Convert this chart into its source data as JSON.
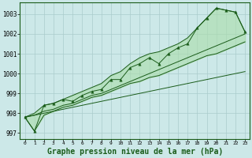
{
  "xlabel": "Graphe pression niveau de la mer (hPa)",
  "bg_color": "#cce8e8",
  "grid_color": "#aacccc",
  "line_color": "#1a5c1a",
  "fill_color": "#aaddaa",
  "ylim": [
    996.7,
    1003.6
  ],
  "xlim": [
    -0.5,
    23.5
  ],
  "yticks": [
    997,
    998,
    999,
    1000,
    1001,
    1002,
    1003
  ],
  "xticks": [
    0,
    1,
    2,
    3,
    4,
    5,
    6,
    7,
    8,
    9,
    10,
    11,
    12,
    13,
    14,
    15,
    16,
    17,
    18,
    19,
    20,
    21,
    22,
    23
  ],
  "x": [
    0,
    1,
    2,
    3,
    4,
    5,
    6,
    7,
    8,
    9,
    10,
    11,
    12,
    13,
    14,
    15,
    16,
    17,
    18,
    19,
    20,
    21,
    22,
    23
  ],
  "y_main": [
    997.8,
    997.1,
    998.4,
    998.5,
    998.7,
    998.6,
    998.9,
    999.1,
    999.2,
    999.7,
    999.7,
    1000.3,
    1000.5,
    1000.8,
    1000.5,
    1001.0,
    1001.3,
    1001.5,
    1002.3,
    1002.8,
    1003.3,
    1003.2,
    1003.1,
    1002.1
  ],
  "y_upper": [
    997.8,
    998.0,
    998.4,
    998.5,
    998.7,
    998.9,
    999.1,
    999.3,
    999.5,
    999.9,
    1000.1,
    1000.5,
    1000.8,
    1001.0,
    1001.1,
    1001.3,
    1001.5,
    1001.8,
    1002.3,
    1002.8,
    1003.3,
    1003.2,
    1003.1,
    1002.1
  ],
  "y_lower": [
    997.8,
    997.1,
    997.9,
    998.1,
    998.3,
    998.4,
    998.6,
    998.8,
    998.9,
    999.1,
    999.3,
    999.5,
    999.6,
    999.8,
    999.9,
    1000.1,
    1000.3,
    1000.5,
    1000.7,
    1000.9,
    1001.0,
    1001.2,
    1001.4,
    1001.6
  ],
  "y_trend_low": [
    997.8,
    997.9,
    998.0,
    998.1,
    998.2,
    998.3,
    998.4,
    998.5,
    998.6,
    998.7,
    998.8,
    998.9,
    999.0,
    999.1,
    999.2,
    999.3,
    999.4,
    999.5,
    999.6,
    999.7,
    999.8,
    999.9,
    1000.0,
    1000.1
  ],
  "y_trend_high": [
    997.8,
    997.9,
    998.1,
    998.2,
    998.4,
    998.5,
    998.7,
    998.9,
    999.0,
    999.2,
    999.4,
    999.6,
    999.8,
    1000.0,
    1000.2,
    1000.4,
    1000.6,
    1000.8,
    1001.0,
    1001.2,
    1001.4,
    1001.6,
    1001.8,
    1002.0
  ]
}
